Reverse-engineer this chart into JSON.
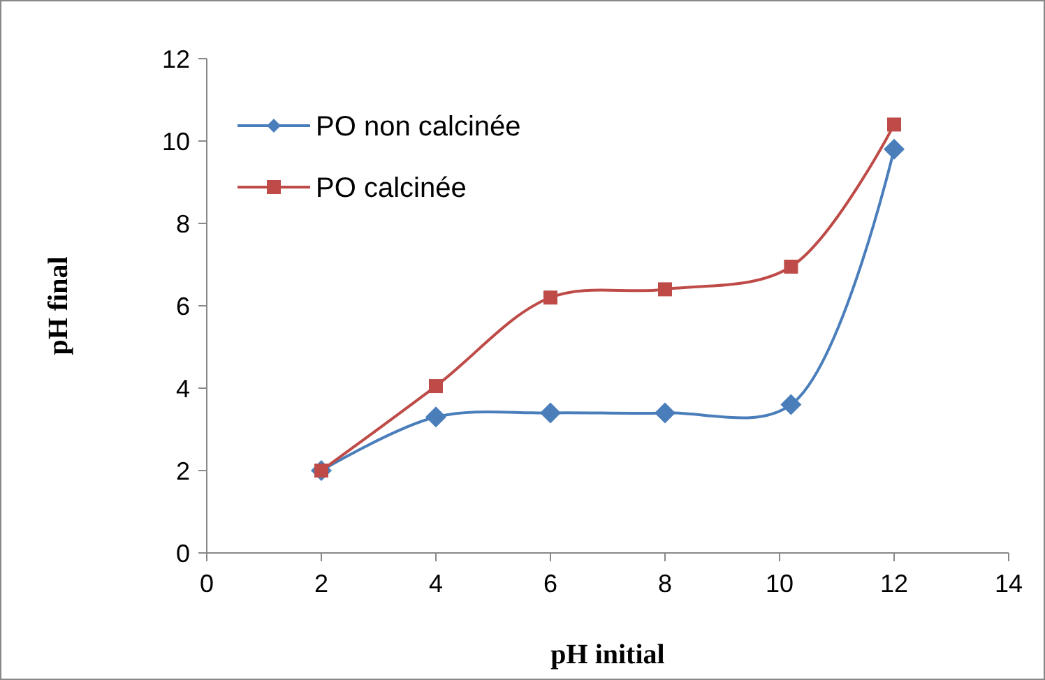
{
  "chart_data": {
    "type": "line",
    "xlabel": "pH initial",
    "ylabel": "pH final",
    "xlim": [
      0,
      14
    ],
    "xticks": [
      0,
      2,
      4,
      6,
      8,
      10,
      12,
      14
    ],
    "ylim": [
      0,
      12
    ],
    "yticks": [
      0,
      2,
      4,
      6,
      8,
      10,
      12
    ],
    "x": [
      2,
      4,
      6,
      8,
      10.2,
      12
    ],
    "grid": false,
    "legend": "top left",
    "line_style": "solid",
    "series": [
      {
        "name": "PO non calcinée",
        "color": "#4a7ebb",
        "marker": "diamond",
        "values": [
          2.0,
          3.3,
          3.4,
          3.4,
          3.6,
          9.8
        ]
      },
      {
        "name": "PO calcinée",
        "color": "#be4b48",
        "marker": "square",
        "values": [
          2.0,
          4.05,
          6.2,
          6.4,
          6.95,
          10.4
        ]
      }
    ]
  }
}
